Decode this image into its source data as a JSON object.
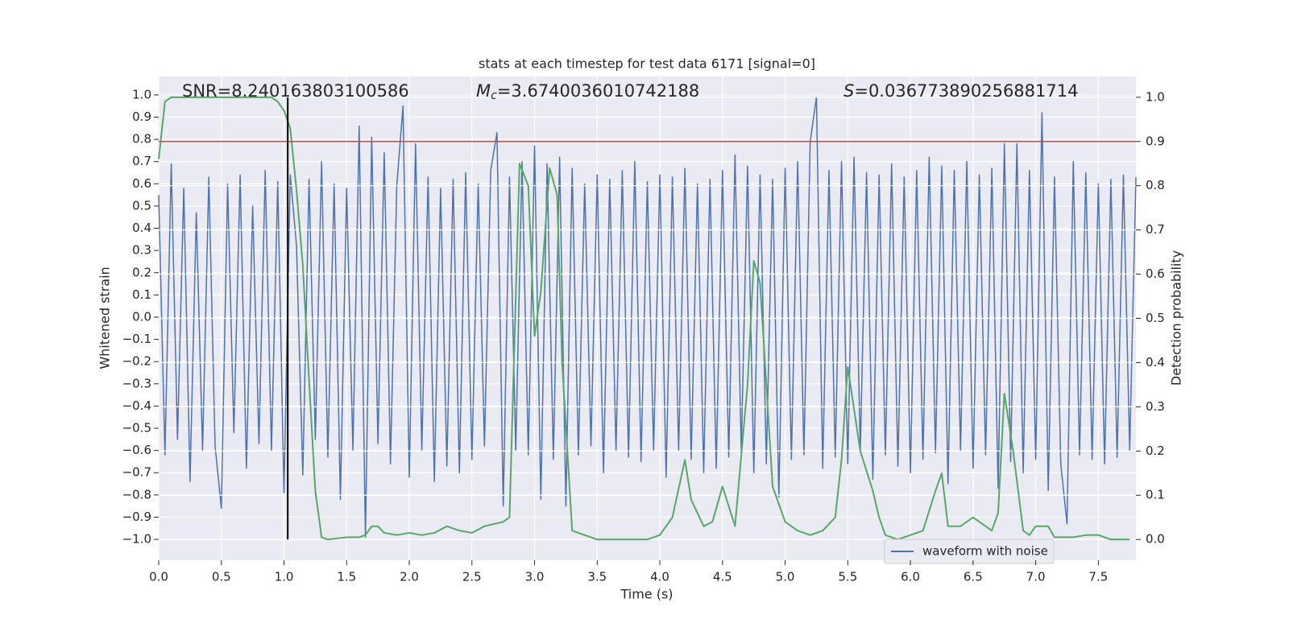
{
  "chart_data": {
    "type": "line",
    "title": "stats at each timestep for test data 6171 [signal=0]",
    "xlabel": "Time (s)",
    "ylabel": "Whitened strain",
    "y2label": "Detection probability",
    "annotations": {
      "snr": "SNR=8.240163803100586",
      "chirp_mass": {
        "symbol": "M",
        "subscript": "c",
        "text": "=3.6740036010742188"
      },
      "s": {
        "symbol": "S",
        "text": "=0.036773890256881714"
      }
    },
    "xlim": [
      0,
      7.8
    ],
    "ylim": [
      -1.094,
      1.083
    ],
    "y2lim": [
      -0.047,
      1.047
    ],
    "xticks": [
      {
        "value": 0,
        "label": "0.0"
      },
      {
        "value": 0.5,
        "label": "0.5"
      },
      {
        "value": 1,
        "label": "1.0"
      },
      {
        "value": 1.5,
        "label": "1.5"
      },
      {
        "value": 2,
        "label": "2.0"
      },
      {
        "value": 2.5,
        "label": "2.5"
      },
      {
        "value": 3,
        "label": "3.0"
      },
      {
        "value": 3.5,
        "label": "3.5"
      },
      {
        "value": 4,
        "label": "4.0"
      },
      {
        "value": 4.5,
        "label": "4.5"
      },
      {
        "value": 5,
        "label": "5.0"
      },
      {
        "value": 5.5,
        "label": "5.5"
      },
      {
        "value": 6,
        "label": "6.0"
      },
      {
        "value": 6.5,
        "label": "6.5"
      },
      {
        "value": 7,
        "label": "7.0"
      },
      {
        "value": 7.5,
        "label": "7.5"
      }
    ],
    "yticks": [
      {
        "value": -1,
        "label": "−1.0"
      },
      {
        "value": -0.9,
        "label": "−0.9"
      },
      {
        "value": -0.8,
        "label": "−0.8"
      },
      {
        "value": -0.7,
        "label": "−0.7"
      },
      {
        "value": -0.6,
        "label": "−0.6"
      },
      {
        "value": -0.5,
        "label": "−0.5"
      },
      {
        "value": -0.4,
        "label": "−0.4"
      },
      {
        "value": -0.3,
        "label": "−0.3"
      },
      {
        "value": -0.2,
        "label": "−0.2"
      },
      {
        "value": -0.1,
        "label": "−0.1"
      },
      {
        "value": 0,
        "label": "0.0"
      },
      {
        "value": 0.1,
        "label": "0.1"
      },
      {
        "value": 0.2,
        "label": "0.2"
      },
      {
        "value": 0.3,
        "label": "0.3"
      },
      {
        "value": 0.4,
        "label": "0.4"
      },
      {
        "value": 0.5,
        "label": "0.5"
      },
      {
        "value": 0.6,
        "label": "0.6"
      },
      {
        "value": 0.7,
        "label": "0.7"
      },
      {
        "value": 0.8,
        "label": "0.8"
      },
      {
        "value": 0.9,
        "label": "0.9"
      },
      {
        "value": 1,
        "label": "1.0"
      }
    ],
    "y2ticks": [
      {
        "value": 0,
        "label": "0.0"
      },
      {
        "value": 0.1,
        "label": "0.1"
      },
      {
        "value": 0.2,
        "label": "0.2"
      },
      {
        "value": 0.3,
        "label": "0.3"
      },
      {
        "value": 0.4,
        "label": "0.4"
      },
      {
        "value": 0.5,
        "label": "0.5"
      },
      {
        "value": 0.6,
        "label": "0.6"
      },
      {
        "value": 0.7,
        "label": "0.7"
      },
      {
        "value": 0.8,
        "label": "0.8"
      },
      {
        "value": 0.9,
        "label": "0.9"
      },
      {
        "value": 1,
        "label": "1.0"
      }
    ],
    "grid": true,
    "legend": "lower right",
    "threshold": {
      "value": 0.9,
      "axis": "y2",
      "color": "#c44e52"
    },
    "marker_line": {
      "x": 1.03,
      "ymin": 0,
      "ymax": 1,
      "axis": "y2",
      "color": "#000000"
    },
    "series": [
      {
        "name": "waveform with noise",
        "color": "#4c72b0",
        "x": [
          0,
          0.05,
          0.1,
          0.15,
          0.2,
          0.25,
          0.3,
          0.35,
          0.4,
          0.45,
          0.5,
          0.55,
          0.6,
          0.65,
          0.7,
          0.75,
          0.8,
          0.85,
          0.9,
          0.95,
          1,
          1.05,
          1.1,
          1.15,
          1.2,
          1.25,
          1.3,
          1.35,
          1.4,
          1.45,
          1.5,
          1.55,
          1.6,
          1.65,
          1.7,
          1.75,
          1.8,
          1.85,
          1.9,
          1.95,
          2,
          2.05,
          2.1,
          2.15,
          2.2,
          2.25,
          2.3,
          2.35,
          2.4,
          2.45,
          2.5,
          2.55,
          2.6,
          2.65,
          2.7,
          2.75,
          2.8,
          2.85,
          2.9,
          2.95,
          3,
          3.05,
          3.1,
          3.15,
          3.2,
          3.25,
          3.3,
          3.35,
          3.4,
          3.45,
          3.5,
          3.55,
          3.6,
          3.65,
          3.7,
          3.75,
          3.8,
          3.85,
          3.9,
          3.95,
          4,
          4.05,
          4.1,
          4.15,
          4.2,
          4.25,
          4.3,
          4.35,
          4.4,
          4.45,
          4.5,
          4.55,
          4.6,
          4.65,
          4.7,
          4.75,
          4.8,
          4.85,
          4.9,
          4.95,
          5,
          5.05,
          5.1,
          5.15,
          5.2,
          5.25,
          5.3,
          5.35,
          5.4,
          5.45,
          5.5,
          5.55,
          5.6,
          5.65,
          5.7,
          5.75,
          5.8,
          5.85,
          5.9,
          5.95,
          6,
          6.05,
          6.1,
          6.15,
          6.2,
          6.25,
          6.3,
          6.35,
          6.4,
          6.45,
          6.5,
          6.55,
          6.6,
          6.65,
          6.7,
          6.75,
          6.8,
          6.85,
          6.9,
          6.95,
          7,
          7.05,
          7.1,
          7.15,
          7.2,
          7.25,
          7.3,
          7.35,
          7.4,
          7.45,
          7.5,
          7.55,
          7.6,
          7.65,
          7.7,
          7.75,
          7.8
        ],
        "values": [
          0.55,
          -0.62,
          0.69,
          -0.55,
          0.58,
          -0.74,
          0.47,
          -0.6,
          0.63,
          -0.58,
          -0.86,
          0.6,
          -0.52,
          0.64,
          -0.68,
          0.5,
          -0.57,
          0.66,
          -0.6,
          0.61,
          -0.79,
          0.64,
          0.32,
          -0.71,
          0.62,
          -0.55,
          0.7,
          -0.63,
          0.6,
          -0.82,
          0.58,
          -0.6,
          0.86,
          -0.99,
          0.81,
          -0.57,
          0.74,
          -0.66,
          0.59,
          0.95,
          -0.72,
          0.78,
          -0.6,
          0.63,
          -0.74,
          0.58,
          -0.67,
          0.62,
          -0.7,
          0.65,
          -0.64,
          0.6,
          -0.58,
          0.66,
          0.83,
          -0.85,
          0.63,
          -0.6,
          0.7,
          -0.62,
          0.77,
          -0.82,
          0.69,
          -0.64,
          0.72,
          -0.85,
          0.67,
          -0.62,
          0.6,
          -0.58,
          0.64,
          -0.7,
          0.62,
          -0.6,
          0.66,
          -0.63,
          0.7,
          -0.65,
          0.61,
          -0.6,
          0.64,
          -0.72,
          0.63,
          -0.6,
          0.67,
          -0.64,
          0.6,
          -0.7,
          0.62,
          -0.68,
          0.66,
          -0.63,
          0.73,
          -0.61,
          0.68,
          -0.7,
          0.64,
          -0.66,
          0.62,
          -0.81,
          0.67,
          -0.64,
          0.7,
          -0.62,
          0.79,
          0.99,
          -0.68,
          0.66,
          -0.63,
          0.7,
          -0.66,
          0.72,
          -0.6,
          0.65,
          -0.73,
          0.64,
          -0.62,
          0.69,
          -0.67,
          0.63,
          -0.7,
          0.66,
          -0.64,
          0.72,
          -0.61,
          0.68,
          -0.75,
          0.66,
          -0.6,
          0.7,
          -0.68,
          0.64,
          -0.62,
          0.67,
          -0.77,
          0.78,
          -0.65,
          0.78,
          -0.7,
          0.66,
          -0.64,
          0.92,
          -0.78,
          0.63,
          -0.66,
          -0.93,
          0.7,
          -0.62,
          0.65,
          -0.64,
          0.6,
          -0.66,
          0.62,
          -0.63,
          0.64,
          -0.6,
          0.63
        ]
      },
      {
        "color": "#55a868",
        "axis": "y2",
        "x": [
          0,
          0.05,
          0.1,
          0.9,
          0.95,
          1,
          1.05,
          1.1,
          1.15,
          1.2,
          1.25,
          1.3,
          1.35,
          1.5,
          1.6,
          1.65,
          1.7,
          1.75,
          1.8,
          1.9,
          2,
          2.1,
          2.2,
          2.3,
          2.4,
          2.5,
          2.6,
          2.75,
          2.8,
          2.88,
          2.95,
          3,
          3.05,
          3.12,
          3.18,
          3.22,
          3.3,
          3.4,
          3.5,
          3.7,
          3.9,
          4,
          4.1,
          4.2,
          4.25,
          4.35,
          4.42,
          4.5,
          4.6,
          4.7,
          4.75,
          4.8,
          4.9,
          5,
          5.1,
          5.2,
          5.3,
          5.4,
          5.45,
          5.5,
          5.6,
          5.7,
          5.75,
          5.8,
          5.9,
          6,
          6.1,
          6.2,
          6.25,
          6.3,
          6.4,
          6.5,
          6.6,
          6.65,
          6.7,
          6.75,
          6.82,
          6.9,
          6.95,
          7,
          7.1,
          7.15,
          7.3,
          7.4,
          7.5,
          7.6,
          7.75
        ],
        "values": [
          0.86,
          0.99,
          1,
          1,
          0.99,
          0.97,
          0.93,
          0.79,
          0.62,
          0.36,
          0.11,
          0.005,
          0,
          0.005,
          0.005,
          0.01,
          0.03,
          0.03,
          0.015,
          0.01,
          0.015,
          0.01,
          0.015,
          0.03,
          0.02,
          0.015,
          0.03,
          0.04,
          0.05,
          0.85,
          0.8,
          0.46,
          0.56,
          0.84,
          0.78,
          0.4,
          0.02,
          0.01,
          0,
          0,
          0,
          0.01,
          0.05,
          0.18,
          0.09,
          0.03,
          0.04,
          0.12,
          0.03,
          0.35,
          0.63,
          0.58,
          0.12,
          0.04,
          0.02,
          0.01,
          0.02,
          0.05,
          0.18,
          0.39,
          0.2,
          0.11,
          0.05,
          0.01,
          0,
          0.01,
          0.02,
          0.11,
          0.15,
          0.03,
          0.03,
          0.05,
          0.03,
          0.02,
          0.06,
          0.33,
          0.2,
          0.02,
          0.01,
          0.03,
          0.03,
          0.005,
          0.005,
          0.01,
          0.01,
          0,
          0
        ]
      }
    ]
  }
}
